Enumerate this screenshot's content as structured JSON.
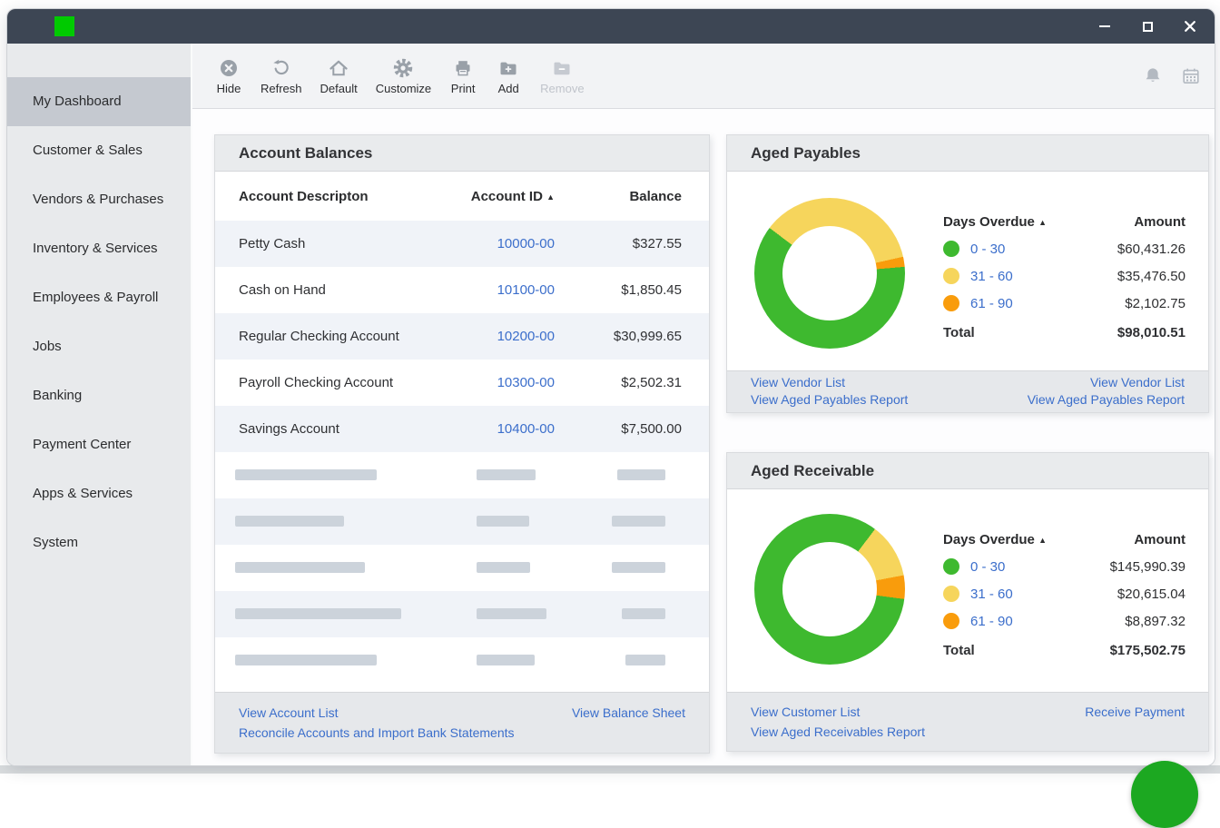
{
  "colors": {
    "titlebar": "#3d4654",
    "logo_green": "#00ca00",
    "link_blue": "#3b6ecb",
    "chart_green": "#3eb92f",
    "chart_yellow": "#f6d55c",
    "chart_orange": "#f99c0c",
    "fab_green": "#1ca821"
  },
  "sidebar": {
    "items": [
      {
        "label": "My Dashboard",
        "active": true
      },
      {
        "label": "Customer & Sales",
        "active": false
      },
      {
        "label": "Vendors & Purchases",
        "active": false
      },
      {
        "label": "Inventory & Services",
        "active": false
      },
      {
        "label": "Employees & Payroll",
        "active": false
      },
      {
        "label": "Jobs",
        "active": false
      },
      {
        "label": "Banking",
        "active": false
      },
      {
        "label": "Payment Center",
        "active": false
      },
      {
        "label": "Apps & Services",
        "active": false
      },
      {
        "label": "System",
        "active": false
      }
    ]
  },
  "toolbar": {
    "buttons": [
      {
        "label": "Hide",
        "icon": "hide-icon",
        "disabled": false
      },
      {
        "label": "Refresh",
        "icon": "refresh-icon",
        "disabled": false
      },
      {
        "label": "Default",
        "icon": "home-icon",
        "disabled": false
      },
      {
        "label": "Customize",
        "icon": "gear-icon",
        "disabled": false
      },
      {
        "label": "Print",
        "icon": "printer-icon",
        "disabled": false
      },
      {
        "label": "Add",
        "icon": "add-folder-icon",
        "disabled": false
      },
      {
        "label": "Remove",
        "icon": "remove-folder-icon",
        "disabled": true
      }
    ]
  },
  "account_balances": {
    "title": "Account Balances",
    "columns": {
      "description": "Account Descripton",
      "id": "Account ID",
      "balance": "Balance"
    },
    "sort_indicator": "▲",
    "rows": [
      {
        "description": "Petty Cash",
        "id": "10000-00",
        "balance": "$327.55"
      },
      {
        "description": "Cash on Hand",
        "id": "10100-00",
        "balance": "$1,850.45"
      },
      {
        "description": "Regular Checking Account",
        "id": "10200-00",
        "balance": "$30,999.65"
      },
      {
        "description": "Payroll Checking Account",
        "id": "10300-00",
        "balance": "$2,502.31"
      },
      {
        "description": "Savings Account",
        "id": "10400-00",
        "balance": "$7,500.00"
      }
    ],
    "skeleton_rows": [
      [
        156,
        65,
        53
      ],
      [
        120,
        58,
        59
      ],
      [
        143,
        59,
        59
      ],
      [
        183,
        77,
        48
      ],
      [
        156,
        64,
        44
      ]
    ],
    "footer": {
      "left": [
        "View Account List",
        "Reconcile Accounts and Import Bank Statements"
      ],
      "right": [
        "View Balance Sheet"
      ]
    }
  },
  "aged_payables": {
    "title": "Aged Payables",
    "legend_header": {
      "label": "Days Overdue",
      "sort": "▲",
      "amount": "Amount"
    },
    "rows": [
      {
        "range": "0 - 30",
        "amount": "$60,431.26",
        "color": "#3eb92f"
      },
      {
        "range": "31 - 60",
        "amount": "$35,476.50",
        "color": "#f6d55c"
      },
      {
        "range": "61 - 90",
        "amount": "$2,102.75",
        "color": "#f99c0c"
      }
    ],
    "total_label": "Total",
    "total_amount": "$98,010.51",
    "donut": {
      "start_deg": -53,
      "segments": [
        {
          "name": "31 - 60",
          "value": 35476.5,
          "color": "#f6d55c"
        },
        {
          "name": "61 - 90",
          "value": 2102.75,
          "color": "#f99c0c"
        },
        {
          "name": "0 - 30",
          "value": 60431.26,
          "color": "#3eb92f"
        }
      ]
    },
    "footer": {
      "left": [
        "View Vendor List",
        "View Aged Payables Report"
      ],
      "right": [
        "View Vendor List",
        "View Aged Payables Report"
      ]
    }
  },
  "aged_receivable": {
    "title": "Aged Receivable",
    "legend_header": {
      "label": "Days Overdue",
      "sort": "▲",
      "amount": "Amount"
    },
    "rows": [
      {
        "range": "0 - 30",
        "amount": "$145,990.39",
        "color": "#3eb92f"
      },
      {
        "range": "31 - 60",
        "amount": "$20,615.04",
        "color": "#f6d55c"
      },
      {
        "range": "61 - 90",
        "amount": "$8,897.32",
        "color": "#f99c0c"
      }
    ],
    "total_label": "Total",
    "total_amount": "$175,502.75",
    "donut": {
      "start_deg": 37,
      "segments": [
        {
          "name": "31 - 60",
          "value": 20615.04,
          "color": "#f6d55c"
        },
        {
          "name": "61 - 90",
          "value": 8897.32,
          "color": "#f99c0c"
        },
        {
          "name": "0 - 30",
          "value": 145990.39,
          "color": "#3eb92f"
        }
      ]
    },
    "footer": {
      "left": [
        "View Customer List",
        "View Aged Receivables Report"
      ],
      "right": [
        "Receive Payment"
      ]
    }
  },
  "chart_data": [
    {
      "type": "pie",
      "title": "Aged Payables",
      "categories": [
        "0 - 30",
        "31 - 60",
        "61 - 90"
      ],
      "values": [
        60431.26,
        35476.5,
        2102.75
      ],
      "total": 98010.51,
      "colors": [
        "#3eb92f",
        "#f6d55c",
        "#f99c0c"
      ],
      "legend_position": "right",
      "donut": true
    },
    {
      "type": "pie",
      "title": "Aged Receivable",
      "categories": [
        "0 - 30",
        "31 - 60",
        "61 - 90"
      ],
      "values": [
        145990.39,
        20615.04,
        8897.32
      ],
      "total": 175502.75,
      "colors": [
        "#3eb92f",
        "#f6d55c",
        "#f99c0c"
      ],
      "legend_position": "right",
      "donut": true
    }
  ]
}
